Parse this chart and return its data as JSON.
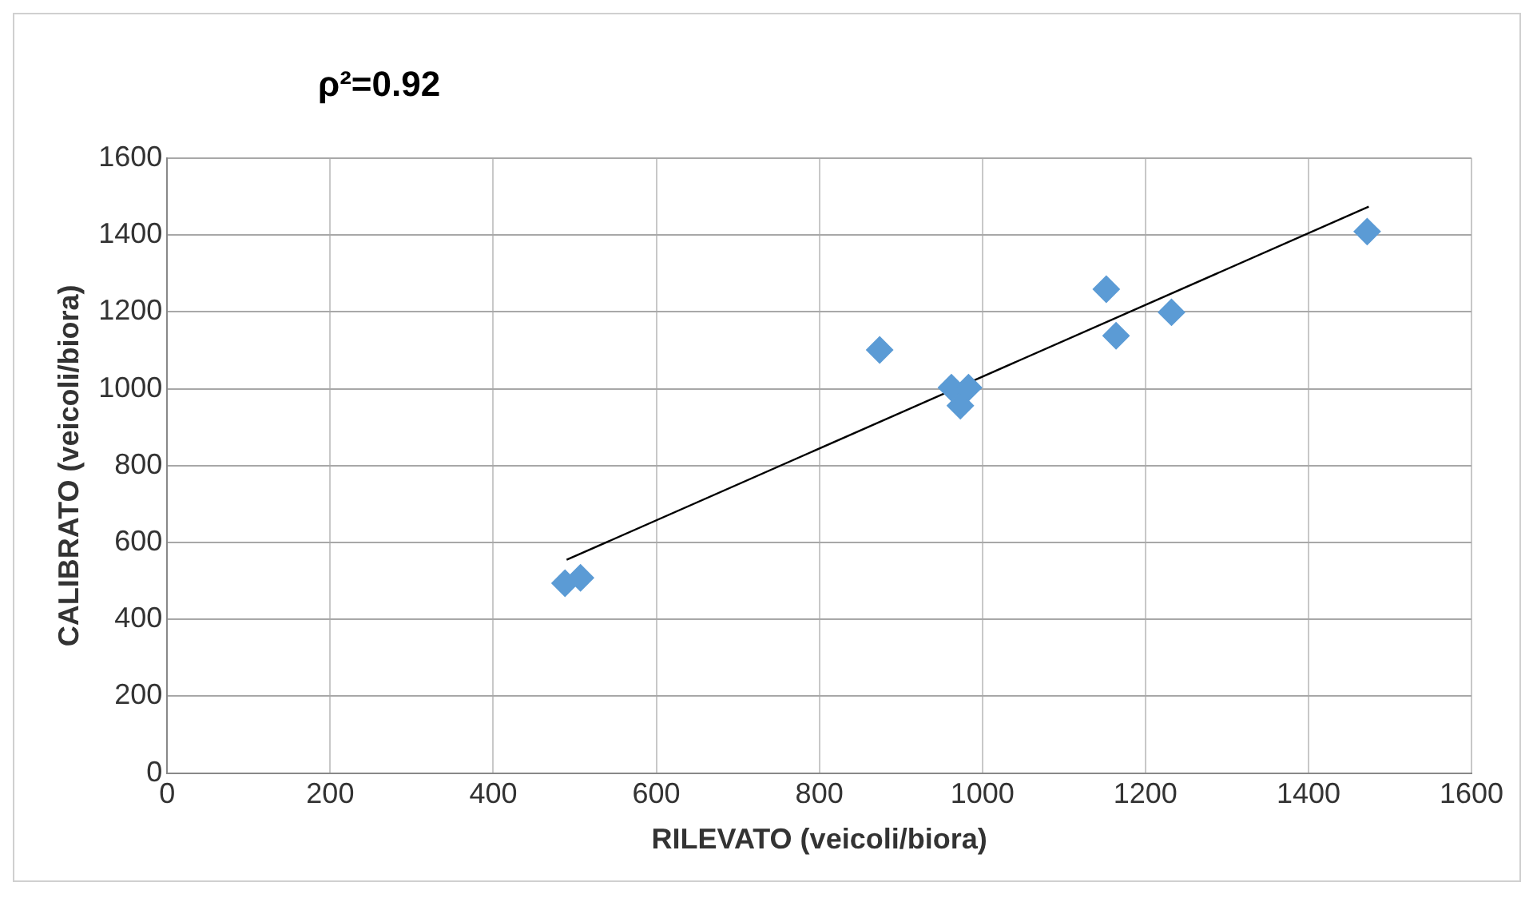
{
  "chart_data": {
    "type": "scatter",
    "xlabel": "RILEVATO (veicoli/biora)",
    "ylabel": "CALIBRATO (veicoli/biora)",
    "annotations": [
      "ρ²=0.92"
    ],
    "xlim": [
      0,
      1600
    ],
    "xticks": [
      0,
      200,
      400,
      600,
      800,
      1000,
      1200,
      1400,
      1600
    ],
    "ylim": [
      0,
      1600
    ],
    "yticks": [
      0,
      200,
      400,
      600,
      800,
      1000,
      1200,
      1400,
      1600
    ],
    "grid": true,
    "legend": false,
    "marker": "diamond",
    "series": [
      {
        "type": "scatter",
        "color": "#5b9bd5",
        "x": [
          488,
          507,
          874,
          962,
          973,
          983,
          1152,
          1164,
          1232,
          1472
        ],
        "values": [
          494,
          508,
          1101,
          1003,
          956,
          1003,
          1259,
          1138,
          1199,
          1409
        ]
      },
      {
        "type": "line",
        "color": "#000000",
        "marker": "none",
        "x": [
          490,
          1474
        ],
        "values": [
          555,
          1474
        ]
      }
    ]
  }
}
